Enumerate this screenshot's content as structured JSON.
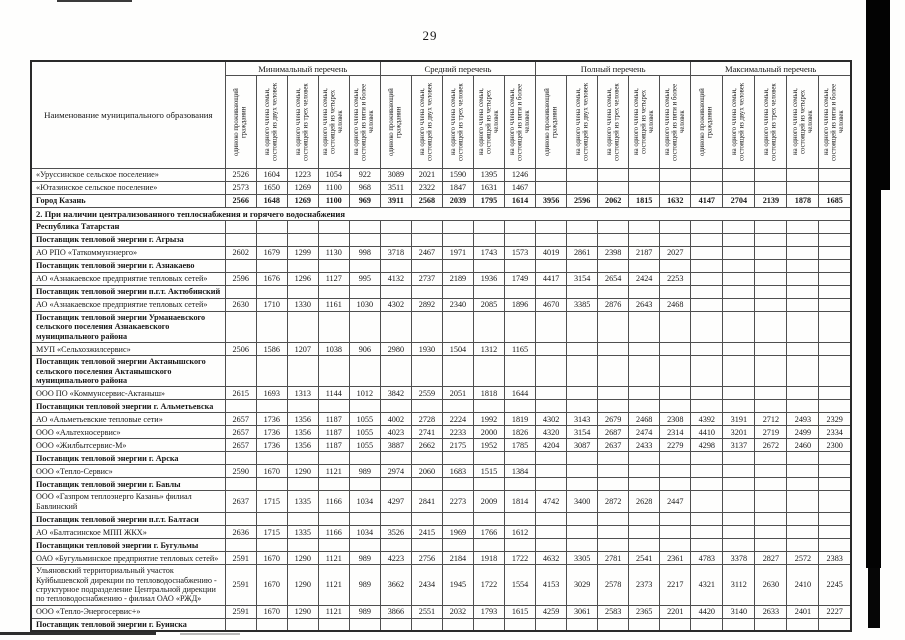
{
  "page": {
    "number": "29"
  },
  "colors": {
    "paper": "#fefefd",
    "ink": "#161616",
    "table_border": "#4f4f4f",
    "scan_black": "#030303"
  },
  "table": {
    "name_header": "Наименование муниципального образования",
    "groups": [
      {
        "label": "Минимальный перечень"
      },
      {
        "label": "Средний перечень"
      },
      {
        "label": "Полный перечень"
      },
      {
        "label": "Максимальный перечень"
      }
    ],
    "subcolumns": [
      "одиноко проживающий гражданин",
      "на одного члена семьи, состоящей из двух человек",
      "на одного члена семьи, состоящей из трех человек",
      "на одного члена семьи, состоящей из четырех человек",
      "на одного члена семьи, состоящей из пяти и более человек"
    ],
    "rows": [
      {
        "type": "data",
        "name": "«Уруссинское сельское поселение»",
        "values": [
          "2526",
          "1604",
          "1223",
          "1054",
          "922",
          "3089",
          "2021",
          "1590",
          "1395",
          "1246",
          "",
          "",
          "",
          "",
          "",
          "",
          "",
          "",
          "",
          ""
        ]
      },
      {
        "type": "data",
        "name": "«Ютазинское сельское поселение»",
        "values": [
          "2573",
          "1650",
          "1269",
          "1100",
          "968",
          "3511",
          "2322",
          "1847",
          "1631",
          "1467",
          "",
          "",
          "",
          "",
          "",
          "",
          "",
          "",
          "",
          ""
        ]
      },
      {
        "type": "data",
        "bold": true,
        "name": "Город Казань",
        "values": [
          "2566",
          "1648",
          "1269",
          "1100",
          "969",
          "3911",
          "2568",
          "2039",
          "1795",
          "1614",
          "3956",
          "2596",
          "2062",
          "1815",
          "1632",
          "4147",
          "2704",
          "2139",
          "1878",
          "1685"
        ]
      },
      {
        "type": "section",
        "name": "2. При наличии централизованного теплоснабжения и горячего водоснабжения"
      },
      {
        "type": "subheader",
        "name": "Республика Татарстан"
      },
      {
        "type": "subheader",
        "name": "Поставщик тепловой энергии г. Агрыза"
      },
      {
        "type": "data",
        "name": "АО РПО «Таткоммунэнерго»",
        "values": [
          "2602",
          "1679",
          "1299",
          "1130",
          "998",
          "3718",
          "2467",
          "1971",
          "1743",
          "1573",
          "4019",
          "2861",
          "2398",
          "2187",
          "2027",
          "",
          "",
          "",
          "",
          ""
        ]
      },
      {
        "type": "subheader",
        "name": "Поставщик тепловой энергии г. Азнакаево"
      },
      {
        "type": "data",
        "name": "АО «Азнакаевское предприятие тепловых сетей»",
        "values": [
          "2596",
          "1676",
          "1296",
          "1127",
          "995",
          "4132",
          "2737",
          "2189",
          "1936",
          "1749",
          "4417",
          "3154",
          "2654",
          "2424",
          "2253",
          "",
          "",
          "",
          "",
          ""
        ]
      },
      {
        "type": "subheader",
        "name": "Поставщик тепловой энергии  п.г.т. Актюбинский"
      },
      {
        "type": "data",
        "name": "АО «Азнакаевское предприятие тепловых сетей»",
        "values": [
          "2630",
          "1710",
          "1330",
          "1161",
          "1030",
          "4302",
          "2892",
          "2340",
          "2085",
          "1896",
          "4670",
          "3385",
          "2876",
          "2643",
          "2468",
          "",
          "",
          "",
          "",
          ""
        ]
      },
      {
        "type": "subheader",
        "name": "Поставщик тепловой энергии  Урманаевского сельского поселения Азнакаевского муниципального района"
      },
      {
        "type": "data",
        "name": "МУП «Сельхозжилсервис»",
        "values": [
          "2506",
          "1586",
          "1207",
          "1038",
          "906",
          "2980",
          "1930",
          "1504",
          "1312",
          "1165",
          "",
          "",
          "",
          "",
          "",
          "",
          "",
          "",
          "",
          ""
        ]
      },
      {
        "type": "subheader",
        "name": "Поставщик тепловой энергии Актанышского сельского поселения Актанышского муниципального района"
      },
      {
        "type": "data",
        "name": "ООО ПО «Коммунсервис-Актаныш»",
        "values": [
          "2615",
          "1693",
          "1313",
          "1144",
          "1012",
          "3842",
          "2559",
          "2051",
          "1818",
          "1644",
          "",
          "",
          "",
          "",
          "",
          "",
          "",
          "",
          "",
          ""
        ]
      },
      {
        "type": "subheader",
        "name": "Поставщики тепловой энергии г. Альметьевска"
      },
      {
        "type": "data",
        "name": "АО «Альметьевские тепловые сети»",
        "values": [
          "2657",
          "1736",
          "1356",
          "1187",
          "1055",
          "4002",
          "2728",
          "2224",
          "1992",
          "1819",
          "4302",
          "3143",
          "2679",
          "2468",
          "2308",
          "4392",
          "3191",
          "2712",
          "2493",
          "2329"
        ]
      },
      {
        "type": "data",
        "name": "ООО «Альтехносервис»",
        "values": [
          "2657",
          "1736",
          "1356",
          "1187",
          "1055",
          "4023",
          "2741",
          "2233",
          "2000",
          "1826",
          "4320",
          "3154",
          "2687",
          "2474",
          "2314",
          "4410",
          "3201",
          "2719",
          "2499",
          "2334"
        ]
      },
      {
        "type": "data",
        "name": "ООО «Жилбытсервис-М»",
        "values": [
          "2657",
          "1736",
          "1356",
          "1187",
          "1055",
          "3887",
          "2662",
          "2175",
          "1952",
          "1785",
          "4204",
          "3087",
          "2637",
          "2433",
          "2279",
          "4298",
          "3137",
          "2672",
          "2460",
          "2300"
        ]
      },
      {
        "type": "subheader",
        "name": "Поставщик тепловой энергии г. Арска"
      },
      {
        "type": "data",
        "name": "ООО «Тепло-Сервис»",
        "values": [
          "2590",
          "1670",
          "1290",
          "1121",
          "989",
          "2974",
          "2060",
          "1683",
          "1515",
          "1384",
          "",
          "",
          "",
          "",
          "",
          "",
          "",
          "",
          "",
          ""
        ]
      },
      {
        "type": "subheader",
        "name": "Поставщик тепловой энергии г. Бавлы"
      },
      {
        "type": "data",
        "name": "ООО «Газпром теплоэнерго Казань» филиал Бавлинский",
        "values": [
          "2637",
          "1715",
          "1335",
          "1166",
          "1034",
          "4297",
          "2841",
          "2273",
          "2009",
          "1814",
          "4742",
          "3400",
          "2872",
          "2628",
          "2447",
          "",
          "",
          "",
          "",
          ""
        ]
      },
      {
        "type": "subheader",
        "name": "Поставщик тепловой энергии  п.г.т. Балтаси"
      },
      {
        "type": "data",
        "name": "АО «Балтасинское МПП ЖКХ»",
        "values": [
          "2636",
          "1715",
          "1335",
          "1166",
          "1034",
          "3526",
          "2415",
          "1969",
          "1766",
          "1612",
          "",
          "",
          "",
          "",
          "",
          "",
          "",
          "",
          "",
          ""
        ]
      },
      {
        "type": "subheader",
        "name": "Поставщики тепловой энергии г. Бугульмы"
      },
      {
        "type": "data",
        "name": "ОАО «Бугульминское предприятие тепловых сетей»",
        "values": [
          "2591",
          "1670",
          "1290",
          "1121",
          "989",
          "4223",
          "2756",
          "2184",
          "1918",
          "1722",
          "4632",
          "3305",
          "2781",
          "2541",
          "2361",
          "4783",
          "3378",
          "2827",
          "2572",
          "2383"
        ]
      },
      {
        "type": "data",
        "name": "Ульяновский территориальный участок Куйбышевской дирекции по тепловодоснабжению - структурное подразделение Центральной дирекции по тепловодоснабжению - филиал ОАО «РЖД»",
        "values": [
          "2591",
          "1670",
          "1290",
          "1121",
          "989",
          "3662",
          "2434",
          "1945",
          "1722",
          "1554",
          "4153",
          "3029",
          "2578",
          "2373",
          "2217",
          "4321",
          "3112",
          "2630",
          "2410",
          "2245"
        ]
      },
      {
        "type": "data",
        "name": "ООО «Тепло-Энергосервис+»",
        "values": [
          "2591",
          "1670",
          "1290",
          "1121",
          "989",
          "3866",
          "2551",
          "2032",
          "1793",
          "1615",
          "4259",
          "3061",
          "2583",
          "2365",
          "2201",
          "4420",
          "3140",
          "2633",
          "2401",
          "2227"
        ]
      },
      {
        "type": "subheader",
        "name": "Поставщик тепловой энергии г. Буинска"
      }
    ]
  }
}
